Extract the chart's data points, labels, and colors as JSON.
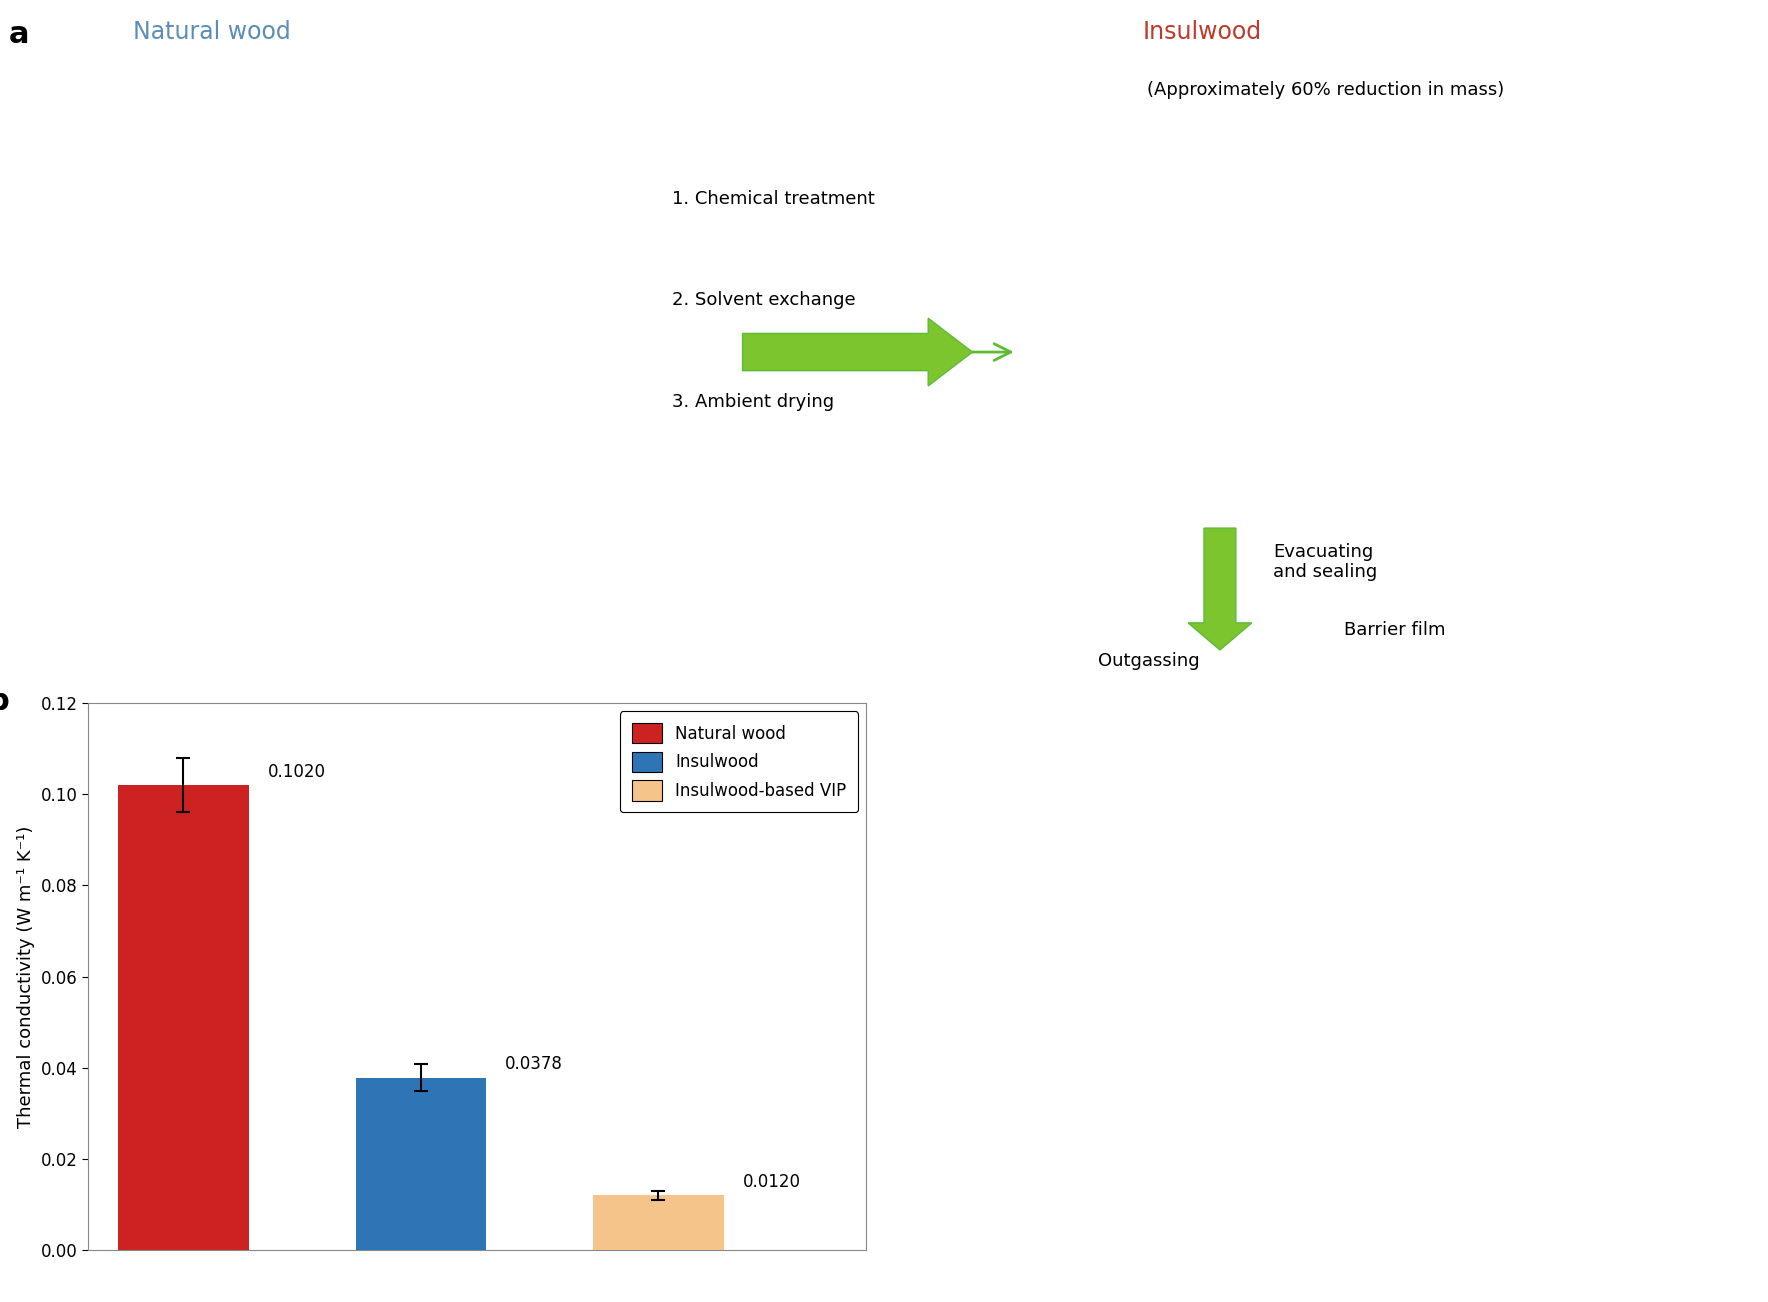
{
  "panel_a_label": "a",
  "panel_b_label": "b",
  "natural_wood_label": "Natural wood",
  "natural_wood_color": "#5B8DB8",
  "insulwood_label": "Insulwood",
  "insulwood_color": "#C0392B",
  "approx_mass_label": "(Approximately 60% reduction in mass)",
  "process_steps": [
    "1. Chemical treatment",
    "2. Solvent exchange",
    "3. Ambient drying"
  ],
  "evacuating_label": "Evacuating\nand sealing",
  "barrier_film_label": "Barrier film",
  "outgassing_label": "Outgassing",
  "bar_categories": [
    "Natural wood",
    "Insulwood",
    "Insulwood-based VIP"
  ],
  "bar_values": [
    0.102,
    0.0378,
    0.012
  ],
  "bar_errors": [
    0.006,
    0.003,
    0.001
  ],
  "bar_colors": [
    "#CC2222",
    "#2E75B6",
    "#F4C48A"
  ],
  "bar_labels": [
    "0.1020",
    "0.0378",
    "0.0120"
  ],
  "ylabel": "Thermal conductivity (W m⁻¹ K⁻¹)",
  "ylim": [
    0,
    0.12
  ],
  "yticks": [
    0,
    0.02,
    0.04,
    0.06,
    0.08,
    0.1,
    0.12
  ],
  "background_color": "#ffffff",
  "fig_width": 17.68,
  "fig_height": 13.02,
  "dpi": 100
}
